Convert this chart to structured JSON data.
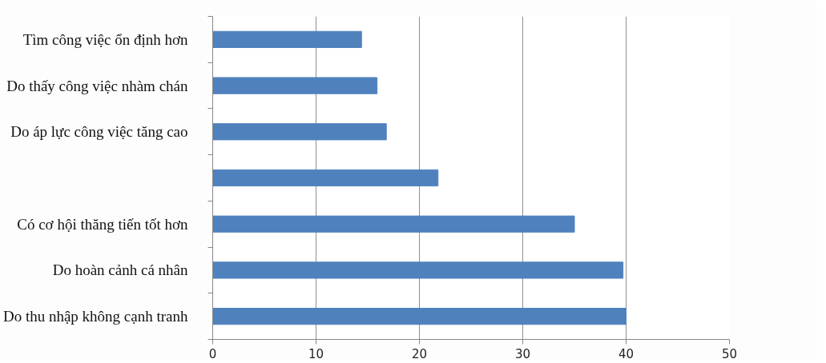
{
  "chart_data": {
    "type": "bar",
    "orientation": "horizontal",
    "categories": [
      "Tìm công việc ổn định hơn",
      "Do thấy công việc nhàm chán",
      "Do áp lực công việc tăng cao",
      null,
      "Có cơ hội thăng tiến tốt hơn",
      "Do hoàn cảnh cá nhân",
      "Do thu nhập không cạnh tranh"
    ],
    "values": [
      14.4,
      15.9,
      16.8,
      21.8,
      35.0,
      39.7,
      40.0
    ],
    "color": "#4f81bd",
    "xlim": [
      0,
      50
    ],
    "xticks": [
      0,
      10,
      20,
      30,
      40,
      50
    ],
    "grid": "x"
  }
}
